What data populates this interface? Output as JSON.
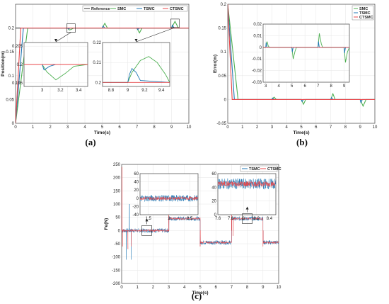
{
  "colors": {
    "reference": "#333333",
    "smc": "#4caf50",
    "tsmc": "#1f77b4",
    "ctsmc": "#e8474b"
  },
  "chart_data": [
    {
      "id": "a",
      "type": "line",
      "caption": "(a)",
      "xlabel": "Time(s)",
      "ylabel": "Position(m)",
      "xlim": [
        0,
        10
      ],
      "ylim": [
        0,
        0.25
      ],
      "xticks": [
        "0",
        "1",
        "2",
        "3",
        "4",
        "5",
        "6",
        "7",
        "8",
        "9",
        "10"
      ],
      "yticks": [
        "0",
        "0.05",
        "0.1",
        "0.15",
        "0.2"
      ],
      "legend": {
        "placement": "top-right",
        "entries": [
          "Reference",
          "SMC",
          "TSMC",
          "CTSMC"
        ]
      },
      "series": [
        {
          "name": "Reference",
          "color": "reference",
          "points": [
            [
              0,
              0.2
            ],
            [
              10,
              0.2
            ]
          ]
        },
        {
          "name": "SMC",
          "color": "smc",
          "points": [
            [
              0,
              0
            ],
            [
              0.7,
              0.2
            ],
            [
              3.0,
              0.2
            ],
            [
              3.1,
              0.196
            ],
            [
              3.2,
              0.197
            ],
            [
              3.35,
              0.2
            ],
            [
              5.0,
              0.2
            ],
            [
              5.15,
              0.21
            ],
            [
              5.3,
              0.2
            ],
            [
              7.0,
              0.2
            ],
            [
              7.15,
              0.19
            ],
            [
              7.3,
              0.2
            ],
            [
              9.0,
              0.2
            ],
            [
              9.2,
              0.214
            ],
            [
              9.4,
              0.2
            ],
            [
              10,
              0.2
            ]
          ]
        },
        {
          "name": "TSMC",
          "color": "tsmc",
          "points": [
            [
              0,
              0
            ],
            [
              0.45,
              0.2
            ],
            [
              3.0,
              0.2
            ],
            [
              3.05,
              0.198
            ],
            [
              3.15,
              0.2
            ],
            [
              5.0,
              0.2
            ],
            [
              5.05,
              0.204
            ],
            [
              5.15,
              0.2
            ],
            [
              7.0,
              0.2
            ],
            [
              7.05,
              0.197
            ],
            [
              7.15,
              0.2
            ],
            [
              9.0,
              0.2
            ],
            [
              9.05,
              0.206
            ],
            [
              9.15,
              0.2
            ],
            [
              10,
              0.2
            ]
          ]
        },
        {
          "name": "CTSMC",
          "color": "ctsmc",
          "points": [
            [
              0,
              0
            ],
            [
              0.3,
              0.2
            ],
            [
              10,
              0.2
            ]
          ]
        }
      ],
      "insets": [
        {
          "xlim": [
            2.8,
            3.5
          ],
          "ylim": [
            0.194,
            0.206
          ],
          "xticks": [
            "3",
            "3.2",
            "3.4"
          ],
          "yticks": [
            "0.195",
            "0.2",
            "0.205"
          ],
          "series": [
            {
              "color": "smc",
              "points": [
                [
                  2.8,
                  0.2
                ],
                [
                  3.0,
                  0.2
                ],
                [
                  3.05,
                  0.198
                ],
                [
                  3.15,
                  0.1958
                ],
                [
                  3.25,
                  0.1975
                ],
                [
                  3.35,
                  0.1995
                ],
                [
                  3.5,
                  0.2
                ]
              ]
            },
            {
              "color": "tsmc",
              "points": [
                [
                  2.8,
                  0.2
                ],
                [
                  3.0,
                  0.2
                ],
                [
                  3.02,
                  0.1985
                ],
                [
                  3.08,
                  0.1995
                ],
                [
                  3.15,
                  0.2
                ],
                [
                  3.5,
                  0.2
                ]
              ]
            },
            {
              "color": "ctsmc",
              "points": [
                [
                  2.8,
                  0.2
                ],
                [
                  3.5,
                  0.2
                ]
              ]
            }
          ]
        },
        {
          "xlim": [
            8.7,
            9.5
          ],
          "ylim": [
            0.198,
            0.22
          ],
          "xticks": [
            "8.8",
            "9",
            "9.2",
            "9.4"
          ],
          "yticks": [
            "0.2",
            "0.21",
            "0.22"
          ],
          "series": [
            {
              "color": "smc",
              "points": [
                [
                  8.7,
                  0.2
                ],
                [
                  9.0,
                  0.2
                ],
                [
                  9.05,
                  0.205
                ],
                [
                  9.15,
                  0.211
                ],
                [
                  9.25,
                  0.213
                ],
                [
                  9.35,
                  0.21
                ],
                [
                  9.45,
                  0.204
                ],
                [
                  9.5,
                  0.2
                ]
              ]
            },
            {
              "color": "tsmc",
              "points": [
                [
                  8.7,
                  0.2
                ],
                [
                  9.0,
                  0.2
                ],
                [
                  9.02,
                  0.204
                ],
                [
                  9.05,
                  0.207
                ],
                [
                  9.1,
                  0.205
                ],
                [
                  9.15,
                  0.201
                ],
                [
                  9.5,
                  0.2
                ]
              ]
            },
            {
              "color": "ctsmc",
              "points": [
                [
                  8.7,
                  0.2
                ],
                [
                  9.5,
                  0.2
                ]
              ]
            }
          ]
        }
      ]
    },
    {
      "id": "b",
      "type": "line",
      "caption": "(b)",
      "xlabel": "Time(s)",
      "ylabel": "Error(m)",
      "xlim": [
        0,
        10
      ],
      "ylim": [
        -0.05,
        0.2
      ],
      "xticks": [
        "0",
        "1",
        "2",
        "3",
        "4",
        "5",
        "6",
        "7",
        "8",
        "9",
        "10"
      ],
      "yticks": [
        "-0.05",
        "0",
        "0.05",
        "0.1",
        "0.15",
        "0.2"
      ],
      "legend": {
        "placement": "top-right",
        "entries": [
          "SMC",
          "TSMC",
          "CTSMC"
        ]
      },
      "series": [
        {
          "name": "SMC",
          "color": "smc",
          "points": [
            [
              0,
              0.2
            ],
            [
              0.7,
              0
            ],
            [
              3.0,
              0
            ],
            [
              3.15,
              0.005
            ],
            [
              3.3,
              0
            ],
            [
              5.0,
              0
            ],
            [
              5.15,
              -0.01
            ],
            [
              5.3,
              0
            ],
            [
              7.0,
              0
            ],
            [
              7.15,
              0.012
            ],
            [
              7.3,
              0
            ],
            [
              9.0,
              0
            ],
            [
              9.2,
              -0.014
            ],
            [
              9.4,
              0
            ],
            [
              10,
              0
            ]
          ]
        },
        {
          "name": "TSMC",
          "color": "tsmc",
          "points": [
            [
              0,
              0.2
            ],
            [
              0.45,
              0
            ],
            [
              3.0,
              0
            ],
            [
              3.05,
              0.003
            ],
            [
              3.15,
              0
            ],
            [
              5.0,
              0
            ],
            [
              5.05,
              -0.004
            ],
            [
              5.15,
              0
            ],
            [
              7.0,
              0
            ],
            [
              7.05,
              0.004
            ],
            [
              7.15,
              0
            ],
            [
              9.0,
              0
            ],
            [
              9.05,
              -0.006
            ],
            [
              9.15,
              0
            ],
            [
              10,
              0
            ]
          ]
        },
        {
          "name": "CTSMC",
          "color": "ctsmc",
          "points": [
            [
              0,
              0.2
            ],
            [
              0.3,
              0
            ],
            [
              10,
              0
            ]
          ]
        }
      ],
      "insets": [
        {
          "xlim": [
            2.8,
            9.4
          ],
          "ylim": [
            -0.03,
            0.02
          ],
          "xticks": [
            "3",
            "4",
            "5",
            "6",
            "7",
            "8",
            "9"
          ],
          "yticks": [
            "-0.03",
            "-0.02",
            "-0.01",
            "0",
            "0.01",
            "0.02"
          ],
          "series": [
            {
              "color": "smc",
              "points": [
                [
                  2.8,
                  0
                ],
                [
                  3.0,
                  0
                ],
                [
                  3.1,
                  0.005
                ],
                [
                  3.2,
                  0.001
                ],
                [
                  3.3,
                  0
                ],
                [
                  5.0,
                  0
                ],
                [
                  5.1,
                  -0.01
                ],
                [
                  5.25,
                  -0.003
                ],
                [
                  5.35,
                  0
                ],
                [
                  7.0,
                  0
                ],
                [
                  7.1,
                  0.012
                ],
                [
                  7.25,
                  0.003
                ],
                [
                  7.35,
                  0
                ],
                [
                  9.0,
                  0
                ],
                [
                  9.1,
                  -0.013
                ],
                [
                  9.25,
                  -0.004
                ],
                [
                  9.4,
                  0
                ]
              ]
            },
            {
              "color": "tsmc",
              "points": [
                [
                  2.8,
                  0
                ],
                [
                  3.0,
                  0
                ],
                [
                  3.03,
                  0.004
                ],
                [
                  3.1,
                  0
                ],
                [
                  5.0,
                  0
                ],
                [
                  5.03,
                  -0.004
                ],
                [
                  5.1,
                  0
                ],
                [
                  7.0,
                  0
                ],
                [
                  7.03,
                  0.005
                ],
                [
                  7.1,
                  0
                ],
                [
                  9.0,
                  0
                ],
                [
                  9.03,
                  -0.005
                ],
                [
                  9.1,
                  0
                ],
                [
                  9.4,
                  0
                ]
              ]
            },
            {
              "color": "ctsmc",
              "points": [
                [
                  2.8,
                  0
                ],
                [
                  9.4,
                  0
                ]
              ]
            }
          ]
        }
      ]
    },
    {
      "id": "c",
      "type": "line",
      "caption": "(c)",
      "xlabel": "Time(s)",
      "ylabel": "Fe(N)",
      "xlim": [
        0,
        10
      ],
      "ylim": [
        -200,
        250
      ],
      "xticks": [
        "0",
        "1",
        "2",
        "3",
        "4",
        "5",
        "6",
        "7",
        "8",
        "9",
        "10"
      ],
      "yticks": [
        "-200",
        "-150",
        "-100",
        "-50",
        "0",
        "50",
        "100",
        "150",
        "200",
        "250"
      ],
      "legend": {
        "placement": "top-right",
        "entries": [
          "TSMC",
          "CTSMC"
        ]
      },
      "series": [
        {
          "name": "TSMC",
          "color": "tsmc",
          "segments": [
            [
              0,
              0.6,
              0
            ],
            [
              0.6,
              3,
              0
            ],
            [
              3,
              5,
              45
            ],
            [
              5,
              7,
              -45
            ],
            [
              7,
              9,
              45
            ],
            [
              9,
              10,
              -45
            ]
          ],
          "noise": 8
        },
        {
          "name": "CTSMC",
          "color": "ctsmc",
          "segments": [
            [
              0,
              0.6,
              0
            ],
            [
              0.6,
              3,
              0
            ],
            [
              3,
              5,
              45
            ],
            [
              5,
              7,
              -45
            ],
            [
              7,
              9,
              45
            ],
            [
              9,
              10,
              -45
            ]
          ],
          "noise": 4
        }
      ],
      "insets": [
        {
          "xlim": [
            1.3,
            2.7
          ],
          "ylim": [
            -40,
            60
          ],
          "xticks": [
            "1.5",
            "2",
            "2.5"
          ],
          "yticks": [
            "-40",
            "-20",
            "0",
            "20",
            "40",
            "60"
          ],
          "level": 0
        },
        {
          "xlim": [
            7.6,
            8.5
          ],
          "ylim": [
            0,
            60
          ],
          "xticks": [
            "7.6",
            "7.8",
            "8",
            "8.2",
            "8.4"
          ],
          "yticks": [
            "0",
            "20",
            "40",
            "60"
          ],
          "level": 45
        }
      ]
    }
  ]
}
